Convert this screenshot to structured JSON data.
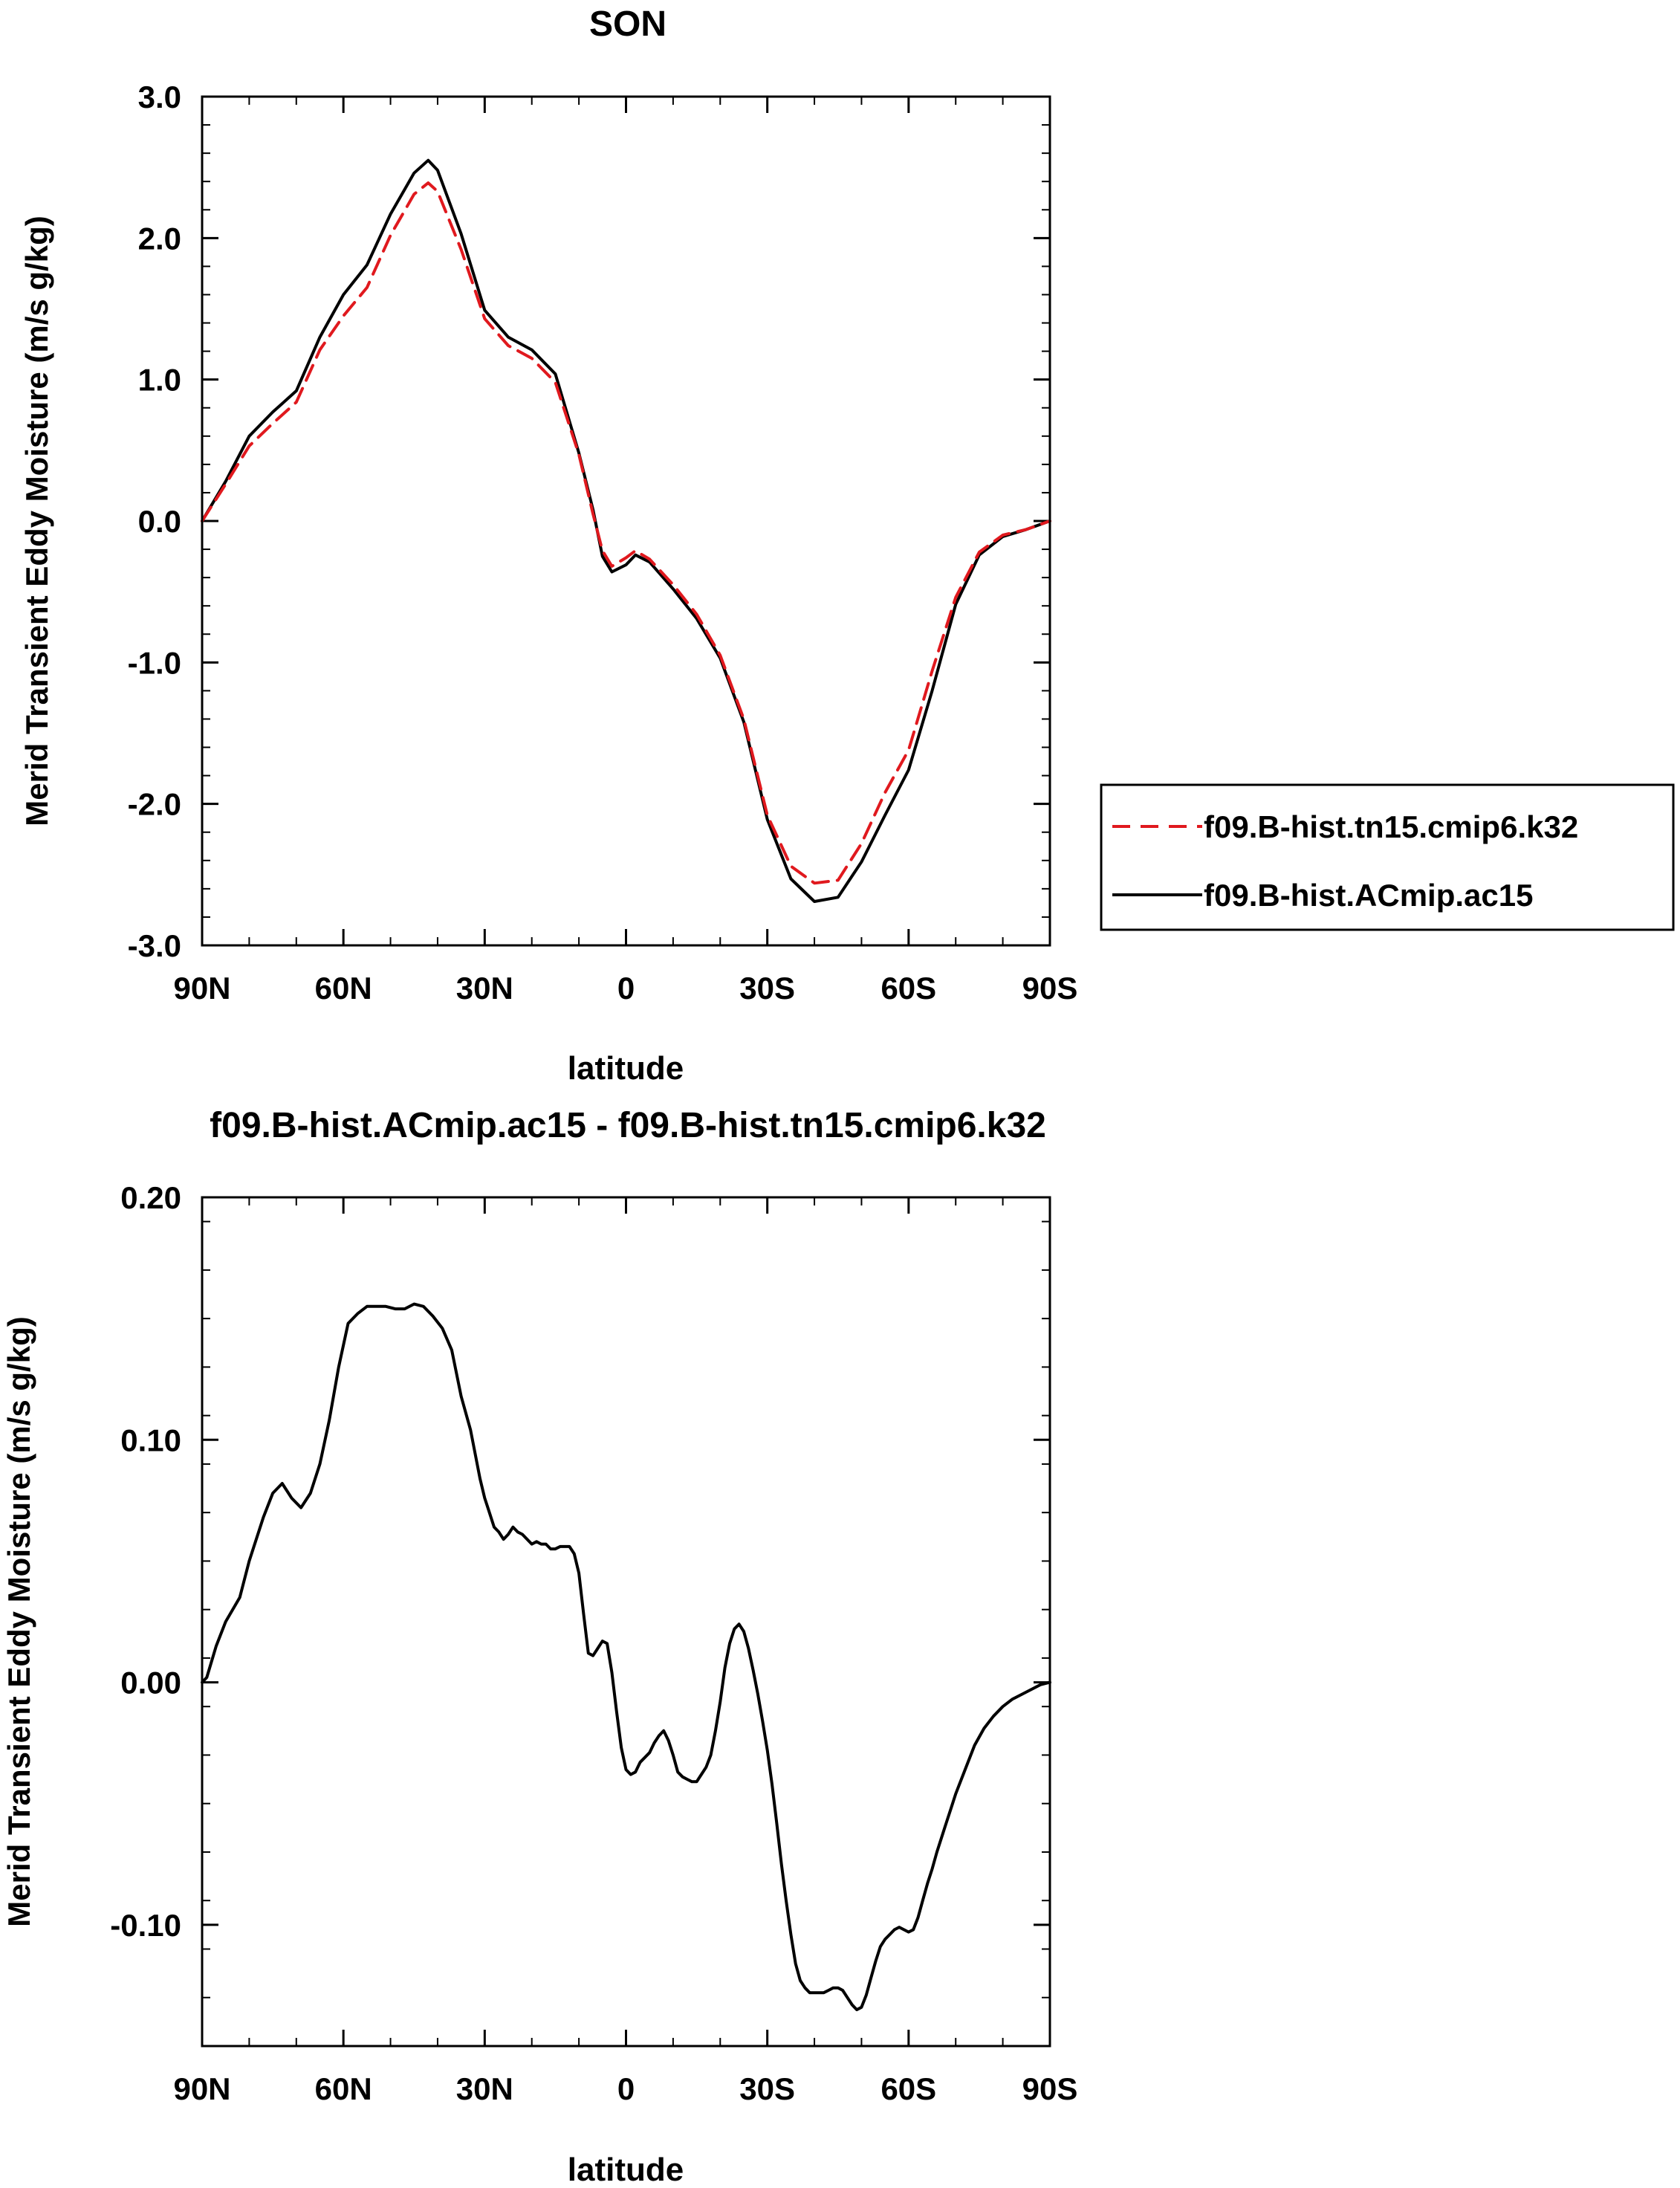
{
  "colors": {
    "k32": "#e0191e",
    "ac15": "#000000"
  },
  "chart_data": [
    {
      "type": "line",
      "title": "SON",
      "xlabel": "latitude",
      "ylabel": "Merid Transient Eddy Moisture (m/s g/kg)",
      "xlim": [
        90,
        -90
      ],
      "ylim": [
        -3.0,
        3.0
      ],
      "xticks": [
        90,
        60,
        30,
        0,
        -30,
        -60,
        -90
      ],
      "xtick_labels": [
        "90N",
        "60N",
        "30N",
        "0",
        "30S",
        "60S",
        "90S"
      ],
      "yticks": [
        -3.0,
        -2.0,
        -1.0,
        0.0,
        1.0,
        2.0,
        3.0
      ],
      "ytick_labels": [
        "-3.0",
        "-2.0",
        "-1.0",
        "0.0",
        "1.0",
        "2.0",
        "3.0"
      ],
      "legend": {
        "position": "right"
      },
      "series": [
        {
          "name": "f09.B-hist.tn15.cmip6.k32",
          "style": "dashed",
          "color": "#e0191e",
          "x": [
            90,
            85,
            80,
            75,
            70,
            65,
            60,
            55,
            50,
            45,
            42,
            40,
            35,
            30,
            25,
            20,
            15,
            10,
            7,
            5,
            3,
            0,
            -2,
            -5,
            -10,
            -15,
            -20,
            -25,
            -30,
            -35,
            -40,
            -45,
            -50,
            -55,
            -60,
            -65,
            -70,
            -75,
            -80,
            -85,
            -90
          ],
          "y": [
            0.0,
            0.26,
            0.53,
            0.69,
            0.84,
            1.21,
            1.45,
            1.65,
            2.02,
            2.31,
            2.39,
            2.33,
            1.92,
            1.43,
            1.24,
            1.15,
            0.98,
            0.47,
            0.05,
            -0.21,
            -0.32,
            -0.26,
            -0.21,
            -0.27,
            -0.45,
            -0.66,
            -0.95,
            -1.4,
            -2.08,
            -2.44,
            -2.56,
            -2.54,
            -2.28,
            -1.92,
            -1.62,
            -1.06,
            -0.54,
            -0.22,
            -0.1,
            -0.06,
            0.0
          ]
        },
        {
          "name": "f09.B-hist.ACmip.ac15",
          "style": "solid",
          "color": "#000000",
          "x": [
            90,
            85,
            80,
            75,
            70,
            65,
            60,
            55,
            50,
            45,
            42,
            40,
            35,
            30,
            25,
            20,
            15,
            10,
            7,
            5,
            3,
            0,
            -2,
            -5,
            -10,
            -15,
            -20,
            -25,
            -30,
            -35,
            -40,
            -45,
            -50,
            -55,
            -60,
            -65,
            -70,
            -75,
            -80,
            -85,
            -90
          ],
          "y": [
            0.0,
            0.28,
            0.6,
            0.77,
            0.92,
            1.3,
            1.6,
            1.81,
            2.17,
            2.46,
            2.55,
            2.48,
            2.03,
            1.49,
            1.3,
            1.21,
            1.04,
            0.48,
            0.08,
            -0.25,
            -0.36,
            -0.31,
            -0.24,
            -0.29,
            -0.48,
            -0.69,
            -0.97,
            -1.42,
            -2.11,
            -2.53,
            -2.69,
            -2.66,
            -2.41,
            -2.08,
            -1.76,
            -1.2,
            -0.59,
            -0.24,
            -0.11,
            -0.06,
            0.0
          ]
        }
      ]
    },
    {
      "type": "line",
      "title": "f09.B-hist.ACmip.ac15 - f09.B-hist.tn15.cmip6.k32",
      "xlabel": "latitude",
      "ylabel": "Merid Transient Eddy Moisture (m/s g/kg)",
      "xlim": [
        90,
        -90
      ],
      "ylim": [
        -0.15,
        0.2
      ],
      "xticks": [
        90,
        60,
        30,
        0,
        -30,
        -60,
        -90
      ],
      "xtick_labels": [
        "90N",
        "60N",
        "30N",
        "0",
        "30S",
        "60S",
        "90S"
      ],
      "yticks": [
        -0.1,
        0.0,
        0.1,
        0.2
      ],
      "ytick_labels": [
        "-0.10",
        "0.00",
        "0.10",
        "0.20"
      ],
      "series": [
        {
          "style": "solid",
          "color": "#000000",
          "x": [
            90,
            89,
            87,
            85,
            82,
            80,
            77,
            75,
            73,
            71,
            69,
            67,
            65,
            63,
            61,
            59,
            57,
            55,
            53,
            51,
            49,
            47,
            45,
            43,
            41,
            39,
            37,
            35,
            33,
            31,
            30,
            29,
            28,
            27,
            26,
            25,
            24,
            23,
            22,
            21,
            20,
            19,
            18,
            17,
            16,
            15,
            14,
            13,
            12,
            11,
            10,
            9,
            8,
            7,
            6,
            5,
            4,
            3,
            2,
            1,
            0,
            -1,
            -2,
            -3,
            -4,
            -5,
            -6,
            -7,
            -8,
            -9,
            -10,
            -11,
            -12,
            -13,
            -14,
            -15,
            -16,
            -17,
            -18,
            -19,
            -20,
            -21,
            -22,
            -23,
            -24,
            -25,
            -26,
            -27,
            -28,
            -29,
            -30,
            -31,
            -32,
            -33,
            -34,
            -35,
            -36,
            -37,
            -38,
            -39,
            -40,
            -41,
            -42,
            -43,
            -44,
            -45,
            -46,
            -47,
            -48,
            -49,
            -50,
            -51,
            -52,
            -53,
            -54,
            -55,
            -56,
            -57,
            -58,
            -59,
            -60,
            -61,
            -62,
            -63,
            -64,
            -65,
            -66,
            -67,
            -68,
            -69,
            -70,
            -72,
            -74,
            -76,
            -78,
            -80,
            -82,
            -84,
            -86,
            -88,
            -90
          ],
          "y": [
            0.0,
            0.002,
            0.015,
            0.025,
            0.035,
            0.05,
            0.068,
            0.078,
            0.082,
            0.076,
            0.072,
            0.078,
            0.09,
            0.108,
            0.13,
            0.148,
            0.152,
            0.155,
            0.155,
            0.155,
            0.154,
            0.154,
            0.156,
            0.155,
            0.151,
            0.146,
            0.137,
            0.118,
            0.104,
            0.084,
            0.076,
            0.07,
            0.064,
            0.062,
            0.059,
            0.061,
            0.064,
            0.062,
            0.061,
            0.059,
            0.057,
            0.058,
            0.057,
            0.057,
            0.055,
            0.055,
            0.056,
            0.056,
            0.056,
            0.053,
            0.045,
            0.028,
            0.012,
            0.011,
            0.014,
            0.017,
            0.016,
            0.004,
            -0.012,
            -0.027,
            -0.036,
            -0.038,
            -0.037,
            -0.033,
            -0.031,
            -0.029,
            -0.025,
            -0.022,
            -0.02,
            -0.024,
            -0.03,
            -0.037,
            -0.039,
            -0.04,
            -0.041,
            -0.041,
            -0.038,
            -0.035,
            -0.03,
            -0.02,
            -0.008,
            0.006,
            0.016,
            0.022,
            0.024,
            0.021,
            0.014,
            0.005,
            -0.005,
            -0.016,
            -0.028,
            -0.042,
            -0.058,
            -0.075,
            -0.09,
            -0.104,
            -0.116,
            -0.123,
            -0.126,
            -0.128,
            -0.128,
            -0.128,
            -0.128,
            -0.127,
            -0.126,
            -0.126,
            -0.127,
            -0.13,
            -0.133,
            -0.135,
            -0.134,
            -0.129,
            -0.122,
            -0.115,
            -0.109,
            -0.106,
            -0.104,
            -0.102,
            -0.101,
            -0.102,
            -0.103,
            -0.102,
            -0.097,
            -0.09,
            -0.083,
            -0.077,
            -0.07,
            -0.064,
            -0.058,
            -0.052,
            -0.046,
            -0.036,
            -0.026,
            -0.019,
            -0.014,
            -0.01,
            -0.007,
            -0.005,
            -0.003,
            -0.001,
            0.0
          ]
        }
      ]
    }
  ]
}
